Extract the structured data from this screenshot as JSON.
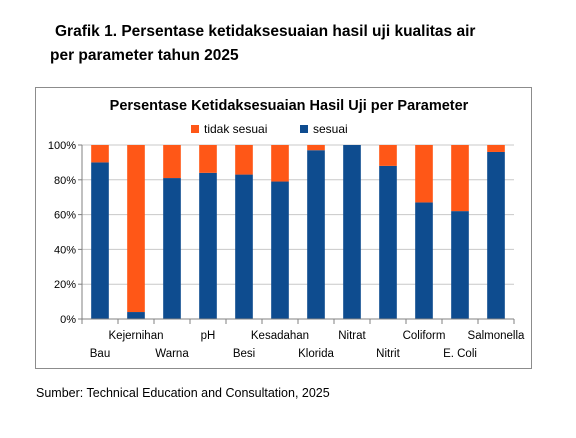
{
  "caption": {
    "line1": "Grafik 1. Persentase ketidaksesuaian hasil uji kualitas air",
    "line2": "per parameter tahun 2025"
  },
  "source": "Sumber: Technical Education and Consultation, 2025",
  "colors": {
    "tidak_sesuai": "#ff5717",
    "sesuai": "#0e4c8f",
    "grid": "#c8c8c8",
    "axis": "#808080"
  },
  "chart_data": {
    "type": "bar",
    "stacked": true,
    "percent_stacked": true,
    "title": "Persentase Ketidaksesuaian Hasil Uji per Parameter",
    "legend_position": "top",
    "grid": true,
    "categories": [
      "Bau",
      "Kejernihan",
      "Warna",
      "pH",
      "Besi",
      "Kesadahan",
      "Klorida",
      "Nitrat",
      "Nitrit",
      "Coliform",
      "E. Coli",
      "Salmonella"
    ],
    "category_label_rows": [
      2,
      1,
      2,
      1,
      2,
      1,
      2,
      1,
      2,
      1,
      2,
      1
    ],
    "yticks": [
      "0%",
      "20%",
      "40%",
      "60%",
      "80%",
      "100%"
    ],
    "ylim": [
      0,
      100
    ],
    "series": [
      {
        "name": "sesuai",
        "color": "#0e4c8f",
        "values": [
          90,
          4,
          81,
          84,
          83,
          79,
          97,
          100,
          88,
          67,
          62,
          96
        ]
      },
      {
        "name": "tidak sesuai",
        "color": "#ff5717",
        "values": [
          10,
          96,
          19,
          16,
          17,
          21,
          3,
          0,
          12,
          33,
          38,
          4
        ]
      }
    ]
  }
}
